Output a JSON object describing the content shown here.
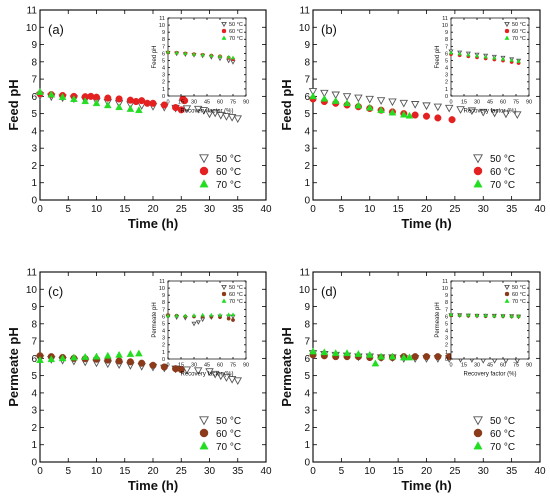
{
  "chart_data": [
    {
      "type": "scatter",
      "panel_label": "(a)",
      "xlabel": "Time (h)",
      "ylabel": "Feed pH",
      "xlim": [
        0,
        40
      ],
      "ylim": [
        0,
        11
      ],
      "xticks": [
        0,
        5,
        10,
        15,
        20,
        25,
        30,
        35,
        40
      ],
      "yticks": [
        0,
        1,
        2,
        3,
        4,
        5,
        6,
        7,
        8,
        9,
        10,
        11
      ],
      "legend_position": "bottom-right",
      "series": [
        {
          "name": "50 °C",
          "marker": "triangle-down-open",
          "color": "#555555",
          "x": [
            0,
            2,
            4,
            6,
            8,
            10,
            12,
            14,
            16,
            18,
            20,
            22,
            24,
            26,
            28,
            29,
            30,
            31,
            32,
            33,
            34,
            35
          ],
          "y": [
            6.05,
            5.99,
            5.93,
            5.87,
            5.8,
            5.74,
            5.67,
            5.6,
            5.54,
            5.48,
            5.43,
            5.38,
            5.33,
            5.3,
            5.27,
            5.2,
            5.0,
            5.05,
            4.92,
            4.85,
            4.8,
            4.72
          ]
        },
        {
          "name": "60 °C",
          "marker": "circle",
          "color": "#e52020",
          "x": [
            0,
            2,
            4,
            6,
            8,
            9,
            10,
            12,
            14,
            16,
            17,
            18,
            19,
            20,
            22,
            24,
            25,
            25.3,
            25.6
          ],
          "y": [
            6.15,
            6.1,
            6.05,
            6.0,
            5.98,
            6.0,
            5.95,
            5.9,
            5.85,
            5.78,
            5.7,
            5.75,
            5.6,
            5.6,
            5.5,
            5.35,
            5.22,
            5.85,
            5.75
          ]
        },
        {
          "name": "70 °C",
          "marker": "triangle-up",
          "color": "#22dd22",
          "x": [
            0,
            2,
            4,
            6,
            8,
            10,
            12,
            14,
            16,
            17.5
          ],
          "y": [
            6.25,
            6.1,
            5.96,
            5.84,
            5.72,
            5.6,
            5.48,
            5.37,
            5.27,
            5.2
          ]
        }
      ],
      "inset": {
        "xlabel": "Recovery factor (%)",
        "ylabel": "Feed pH",
        "xlim": [
          0,
          90
        ],
        "ylim": [
          0,
          11
        ],
        "xticks": [
          0,
          15,
          30,
          45,
          60,
          75,
          90
        ],
        "yticks": [
          0,
          1,
          2,
          3,
          4,
          5,
          6,
          7,
          8,
          9,
          10,
          11
        ],
        "series": [
          {
            "name": "50 °C",
            "marker": "triangle-down-open",
            "color": "#555555",
            "x": [
              0,
              10,
              20,
              30,
              40,
              50,
              60,
              70,
              75
            ],
            "y": [
              6.1,
              6.0,
              5.9,
              5.8,
              5.7,
              5.5,
              5.3,
              5.0,
              4.8
            ]
          },
          {
            "name": "60 °C",
            "marker": "circle",
            "color": "#e52020",
            "x": [
              0,
              10,
              20,
              30,
              40,
              50,
              60,
              70,
              75
            ],
            "y": [
              6.15,
              6.1,
              6.0,
              5.9,
              5.8,
              5.7,
              5.6,
              5.4,
              5.2
            ]
          },
          {
            "name": "70 °C",
            "marker": "triangle-up",
            "color": "#22dd22",
            "x": [
              0,
              10,
              20,
              30,
              40,
              50,
              60,
              70,
              75
            ],
            "y": [
              6.2,
              6.1,
              6.0,
              5.9,
              5.8,
              5.7,
              5.6,
              5.5,
              5.4
            ]
          }
        ]
      }
    },
    {
      "type": "scatter",
      "panel_label": "(b)",
      "xlabel": "Time (h)",
      "ylabel": "Feed pH",
      "xlim": [
        0,
        40
      ],
      "ylim": [
        0,
        11
      ],
      "xticks": [
        0,
        5,
        10,
        15,
        20,
        25,
        30,
        35,
        40
      ],
      "yticks": [
        0,
        1,
        2,
        3,
        4,
        5,
        6,
        7,
        8,
        9,
        10,
        11
      ],
      "legend_position": "bottom-right",
      "series": [
        {
          "name": "50 °C",
          "marker": "triangle-down-open",
          "color": "#555555",
          "x": [
            0,
            2,
            4,
            6,
            8,
            10,
            12,
            14,
            16,
            18,
            20,
            22,
            24,
            26,
            28,
            30,
            32,
            34,
            36
          ],
          "y": [
            6.3,
            6.2,
            6.1,
            6.0,
            5.92,
            5.85,
            5.77,
            5.7,
            5.62,
            5.55,
            5.47,
            5.4,
            5.33,
            5.25,
            5.18,
            5.1,
            5.05,
            5.0,
            4.95
          ]
        },
        {
          "name": "60 °C",
          "marker": "circle",
          "color": "#e52020",
          "x": [
            0,
            2,
            4,
            6,
            8,
            10,
            12,
            14,
            16,
            18,
            20,
            22,
            24.5
          ],
          "y": [
            5.85,
            5.7,
            5.6,
            5.5,
            5.4,
            5.3,
            5.2,
            5.1,
            5.0,
            4.92,
            4.85,
            4.75,
            4.65
          ]
        },
        {
          "name": "70 °C",
          "marker": "triangle-up",
          "color": "#22dd22",
          "x": [
            0,
            2,
            4,
            6,
            8,
            10,
            12,
            14,
            16,
            17
          ],
          "y": [
            6.0,
            5.86,
            5.73,
            5.6,
            5.47,
            5.34,
            5.2,
            5.06,
            4.94,
            4.88
          ]
        }
      ],
      "inset": {
        "xlabel": "Recovery factor (%)",
        "ylabel": "Feed pH",
        "xlim": [
          0,
          90
        ],
        "ylim": [
          0,
          11
        ],
        "xticks": [
          0,
          15,
          30,
          45,
          60,
          75,
          90
        ],
        "yticks": [
          0,
          1,
          2,
          3,
          4,
          5,
          6,
          7,
          8,
          9,
          10,
          11
        ],
        "series": [
          {
            "name": "50 °C",
            "marker": "triangle-down-open",
            "color": "#555555",
            "x": [
              0,
              10,
              20,
              30,
              40,
              50,
              60,
              70,
              78
            ],
            "y": [
              6.3,
              6.15,
              6.0,
              5.85,
              5.7,
              5.55,
              5.4,
              5.2,
              5.0
            ]
          },
          {
            "name": "60 °C",
            "marker": "circle",
            "color": "#e52020",
            "x": [
              0,
              10,
              20,
              30,
              40,
              50,
              60,
              70,
              78
            ],
            "y": [
              5.9,
              5.75,
              5.6,
              5.45,
              5.3,
              5.15,
              5.0,
              4.8,
              4.65
            ]
          },
          {
            "name": "70 °C",
            "marker": "triangle-up",
            "color": "#22dd22",
            "x": [
              0,
              10,
              20,
              30,
              40,
              50,
              60,
              70,
              78
            ],
            "y": [
              6.1,
              5.95,
              5.8,
              5.65,
              5.5,
              5.35,
              5.2,
              5.05,
              4.9
            ]
          }
        ]
      }
    },
    {
      "type": "scatter",
      "panel_label": "(c)",
      "xlabel": "Time (h)",
      "ylabel": "Permeate pH",
      "xlim": [
        0,
        40
      ],
      "ylim": [
        0,
        11
      ],
      "xticks": [
        0,
        5,
        10,
        15,
        20,
        25,
        30,
        35,
        40
      ],
      "yticks": [
        0,
        1,
        2,
        3,
        4,
        5,
        6,
        7,
        8,
        9,
        10,
        11
      ],
      "legend_position": "bottom-right",
      "series": [
        {
          "name": "50 °C",
          "marker": "triangle-down-open",
          "color": "#555555",
          "x": [
            0,
            2,
            4,
            6,
            8,
            10,
            12,
            14,
            16,
            18,
            20,
            22,
            24,
            26,
            28,
            30,
            31,
            32,
            33,
            34,
            35
          ],
          "y": [
            6.0,
            5.95,
            5.9,
            5.85,
            5.8,
            5.75,
            5.7,
            5.65,
            5.6,
            5.55,
            5.5,
            5.45,
            5.4,
            5.35,
            5.3,
            5.25,
            5.1,
            5.0,
            4.9,
            4.8,
            4.72
          ]
        },
        {
          "name": "60 °C",
          "marker": "circle",
          "color": "#8b3a1a",
          "x": [
            0,
            2,
            4,
            6,
            8,
            10,
            12,
            14,
            16,
            18,
            20,
            22,
            24,
            25
          ],
          "y": [
            6.15,
            6.1,
            6.05,
            6.0,
            5.98,
            5.95,
            5.9,
            5.85,
            5.8,
            5.72,
            5.6,
            5.5,
            5.4,
            5.35
          ]
        },
        {
          "name": "70 °C",
          "marker": "triangle-up",
          "color": "#22dd22",
          "x": [
            0,
            2,
            4,
            6,
            8,
            10,
            12,
            14,
            16,
            17.5
          ],
          "y": [
            5.9,
            5.95,
            6.0,
            6.05,
            6.08,
            6.1,
            6.15,
            6.2,
            6.25,
            6.28
          ]
        }
      ],
      "inset": {
        "xlabel": "Recovery factor (%)",
        "ylabel": "Permeate pH",
        "xlim": [
          0,
          90
        ],
        "ylim": [
          0,
          11
        ],
        "xticks": [
          0,
          15,
          30,
          45,
          60,
          75,
          90
        ],
        "yticks": [
          0,
          1,
          2,
          3,
          4,
          5,
          6,
          7,
          8,
          9,
          10,
          11
        ],
        "series": [
          {
            "name": "50 °C",
            "marker": "triangle-down-open",
            "color": "#555555",
            "x": [
              0,
              10,
              20,
              30,
              35,
              40,
              50,
              60,
              70,
              75
            ],
            "y": [
              6.0,
              5.9,
              5.8,
              5.0,
              5.2,
              5.6,
              5.9,
              6.0,
              6.0,
              6.0
            ]
          },
          {
            "name": "60 °C",
            "marker": "circle",
            "color": "#8b3a1a",
            "x": [
              0,
              10,
              20,
              30,
              40,
              50,
              60,
              70,
              75
            ],
            "y": [
              6.2,
              6.1,
              6.0,
              6.0,
              6.0,
              5.95,
              5.9,
              5.7,
              5.5
            ]
          },
          {
            "name": "70 °C",
            "marker": "triangle-up",
            "color": "#22dd22",
            "x": [
              0,
              10,
              20,
              30,
              40,
              50,
              60,
              70,
              75
            ],
            "y": [
              6.1,
              6.1,
              6.1,
              6.15,
              6.2,
              6.2,
              6.2,
              6.25,
              6.25
            ]
          }
        ]
      }
    },
    {
      "type": "scatter",
      "panel_label": "(d)",
      "xlabel": "Time (h)",
      "ylabel": "Permeate pH",
      "xlim": [
        0,
        40
      ],
      "ylim": [
        0,
        11
      ],
      "xticks": [
        0,
        5,
        10,
        15,
        20,
        25,
        30,
        35,
        40
      ],
      "yticks": [
        0,
        1,
        2,
        3,
        4,
        5,
        6,
        7,
        8,
        9,
        10,
        11
      ],
      "legend_position": "bottom-right",
      "series": [
        {
          "name": "50 °C",
          "marker": "triangle-down-open",
          "color": "#555555",
          "x": [
            0,
            2,
            4,
            6,
            8,
            10,
            12,
            14,
            16,
            18,
            20,
            22,
            24,
            26,
            28,
            30,
            32,
            34,
            36
          ],
          "y": [
            6.3,
            6.25,
            6.2,
            6.15,
            6.1,
            6.1,
            6.05,
            6.05,
            6.0,
            6.0,
            6.0,
            6.0,
            6.0,
            6.0,
            6.0,
            5.95,
            5.95,
            5.95,
            5.95
          ]
        },
        {
          "name": "60 °C",
          "marker": "circle",
          "color": "#8b3a1a",
          "x": [
            0,
            2,
            4,
            6,
            8,
            10,
            12,
            14,
            16,
            18,
            20,
            22,
            24
          ],
          "y": [
            6.2,
            6.15,
            6.1,
            6.1,
            6.1,
            6.05,
            6.05,
            6.05,
            6.1,
            6.1,
            6.1,
            6.1,
            6.1
          ]
        },
        {
          "name": "70 °C",
          "marker": "triangle-up",
          "color": "#22dd22",
          "x": [
            0,
            2,
            4,
            6,
            8,
            10,
            11,
            12,
            14,
            16,
            17
          ],
          "y": [
            6.4,
            6.35,
            6.3,
            6.3,
            6.25,
            6.2,
            5.7,
            6.1,
            6.1,
            6.05,
            6.05
          ]
        }
      ],
      "inset": {
        "xlabel": "Recovery factor (%)",
        "ylabel": "Permeate pH",
        "xlim": [
          0,
          90
        ],
        "ylim": [
          0,
          11
        ],
        "xticks": [
          0,
          15,
          30,
          45,
          60,
          75,
          90
        ],
        "yticks": [
          0,
          1,
          2,
          3,
          4,
          5,
          6,
          7,
          8,
          9,
          10,
          11
        ],
        "series": [
          {
            "name": "50 °C",
            "marker": "triangle-down-open",
            "color": "#555555",
            "x": [
              0,
              10,
              20,
              30,
              40,
              50,
              60,
              70,
              78
            ],
            "y": [
              6.2,
              6.2,
              6.15,
              6.1,
              6.1,
              6.1,
              6.05,
              6.05,
              6.0
            ]
          },
          {
            "name": "60 °C",
            "marker": "circle",
            "color": "#8b3a1a",
            "x": [
              0,
              10,
              20,
              30,
              40,
              50,
              60,
              70,
              78
            ],
            "y": [
              6.15,
              6.15,
              6.1,
              6.1,
              6.05,
              6.05,
              6.05,
              6.0,
              6.0
            ]
          },
          {
            "name": "70 °C",
            "marker": "triangle-up",
            "color": "#22dd22",
            "x": [
              0,
              10,
              20,
              30,
              40,
              50,
              60,
              70,
              78
            ],
            "y": [
              6.25,
              6.2,
              6.2,
              6.15,
              6.15,
              6.1,
              6.1,
              6.05,
              6.05
            ]
          }
        ]
      }
    }
  ]
}
